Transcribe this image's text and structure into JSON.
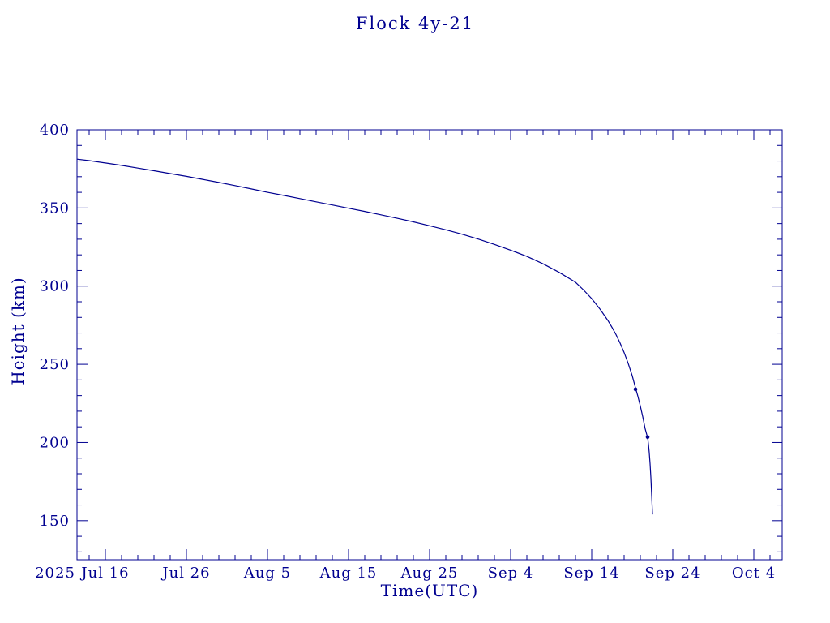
{
  "page": {
    "background": "#ffffff",
    "accent": "#000090"
  },
  "chart_data": {
    "type": "line",
    "title": "Flock 4y-21",
    "xlabel": "Time(UTC)",
    "ylabel": "Height (km)",
    "legend": "none",
    "grid": false,
    "x_axis": {
      "unit": "days since 2025 Jul 16",
      "range": [
        -3.5,
        83.5
      ],
      "year_label": "2025",
      "major_ticks": [
        {
          "day": 0,
          "label": "Jul 16"
        },
        {
          "day": 10,
          "label": "Jul 26"
        },
        {
          "day": 20,
          "label": "Aug 5"
        },
        {
          "day": 30,
          "label": "Aug 15"
        },
        {
          "day": 40,
          "label": "Aug 25"
        },
        {
          "day": 50,
          "label": "Sep 4"
        },
        {
          "day": 60,
          "label": "Sep 14"
        },
        {
          "day": 70,
          "label": "Sep 24"
        },
        {
          "day": 80,
          "label": "Oct 4"
        }
      ],
      "minor_tick_step": 2
    },
    "y_axis": {
      "range": [
        125,
        400
      ],
      "major_ticks": [
        150,
        200,
        250,
        300,
        350,
        400
      ],
      "minor_tick_step": 10
    },
    "series": [
      {
        "name": "Flock 4y-21 orbital height",
        "color": "#000090",
        "points": [
          [
            -3.5,
            381.2
          ],
          [
            -2,
            380.3
          ],
          [
            0,
            378.8
          ],
          [
            2,
            377.2
          ],
          [
            4,
            375.5
          ],
          [
            6,
            373.8
          ],
          [
            8,
            372.0
          ],
          [
            10,
            370.2
          ],
          [
            12,
            368.3
          ],
          [
            14,
            366.3
          ],
          [
            16,
            364.3
          ],
          [
            18,
            362.2
          ],
          [
            20,
            360.0
          ],
          [
            22,
            358.0
          ],
          [
            24,
            356.0
          ],
          [
            26,
            353.9
          ],
          [
            28,
            351.9
          ],
          [
            30,
            349.8
          ],
          [
            32,
            347.8
          ],
          [
            34,
            345.6
          ],
          [
            36,
            343.4
          ],
          [
            38,
            341.1
          ],
          [
            40,
            338.6
          ],
          [
            42,
            336.0
          ],
          [
            44,
            333.2
          ],
          [
            46,
            330.1
          ],
          [
            48,
            326.7
          ],
          [
            50,
            323.0
          ],
          [
            52,
            319.0
          ],
          [
            54,
            314.3
          ],
          [
            56,
            308.8
          ],
          [
            58,
            302.5
          ],
          [
            59,
            297.5
          ],
          [
            60,
            292.0
          ],
          [
            61,
            285.5
          ],
          [
            62,
            278.0
          ],
          [
            62.5,
            273.7
          ],
          [
            63,
            269.0
          ],
          [
            63.5,
            263.6
          ],
          [
            64,
            257.5
          ],
          [
            64.5,
            250.6
          ],
          [
            65,
            242.7
          ],
          [
            65.4,
            235.0
          ],
          [
            65.7,
            229.5
          ],
          [
            66,
            223.3
          ],
          [
            66.3,
            216.4
          ],
          [
            66.6,
            208.7
          ],
          [
            66.9,
            203.0
          ],
          [
            67.0,
            199.0
          ],
          [
            67.1,
            193.5
          ],
          [
            67.2,
            186.5
          ],
          [
            67.3,
            177.5
          ],
          [
            67.4,
            166.0
          ],
          [
            67.5,
            154.0
          ]
        ]
      }
    ],
    "markers": [
      {
        "day": 65.4,
        "km": 234.0
      },
      {
        "day": 66.9,
        "km": 203.5
      }
    ]
  }
}
